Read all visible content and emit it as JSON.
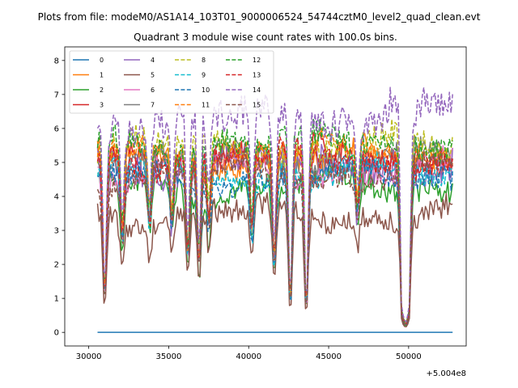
{
  "chart_data": {
    "type": "line",
    "suptitle": "Plots from file: modeM0/AS1A14_103T01_9000006524_54744cztM0_level2_quad_clean.evt",
    "title": "Quadrant 3 module wise count rates with 100.0s bins.",
    "xlabel": "",
    "ylabel": "",
    "x_offset_label": "+5.004e8",
    "xlim": [
      28500,
      53600
    ],
    "ylim": [
      -0.4,
      8.4
    ],
    "x_ticks": [
      30000,
      35000,
      40000,
      45000,
      50000
    ],
    "x_tick_labels": [
      "30000",
      "35000",
      "40000",
      "45000",
      "50000"
    ],
    "y_ticks": [
      0,
      1,
      2,
      3,
      4,
      5,
      6,
      7,
      8
    ],
    "y_tick_labels": [
      "0",
      "1",
      "2",
      "3",
      "4",
      "5",
      "6",
      "7",
      "8"
    ],
    "x_range_data": [
      30550,
      52750
    ],
    "bin_width": 100,
    "legend_position": "upper-left",
    "legend_columns": 4,
    "dip_events": [
      {
        "x": 31000,
        "depth": 0.8
      },
      {
        "x": 32100,
        "depth": 0.45
      },
      {
        "x": 33800,
        "depth": 0.35
      },
      {
        "x": 35200,
        "depth": 0.35
      },
      {
        "x": 36200,
        "depth": 0.55
      },
      {
        "x": 36900,
        "depth": 0.6
      },
      {
        "x": 37500,
        "depth": 0.35
      },
      {
        "x": 40200,
        "depth": 0.4
      },
      {
        "x": 41600,
        "depth": 0.6
      },
      {
        "x": 42600,
        "depth": 0.85
      },
      {
        "x": 43600,
        "depth": 0.88
      },
      {
        "x": 46800,
        "depth": 0.3
      },
      {
        "x": 49600,
        "depth": 0.95
      },
      {
        "x": 49800,
        "depth": 1.0
      },
      {
        "x": 50000,
        "depth": 0.95
      }
    ],
    "series": [
      {
        "name": "0",
        "color": "#1f77b4",
        "dash": "solid",
        "mean": 0.0,
        "amp": 0.0,
        "constant": true
      },
      {
        "name": "1",
        "color": "#ff7f0e",
        "dash": "solid",
        "mean": 5.1,
        "amp": 0.4
      },
      {
        "name": "2",
        "color": "#2ca02c",
        "dash": "solid",
        "mean": 4.3,
        "amp": 0.35
      },
      {
        "name": "3",
        "color": "#d62728",
        "dash": "solid",
        "mean": 5.2,
        "amp": 0.35
      },
      {
        "name": "4",
        "color": "#9467bd",
        "dash": "solid",
        "mean": 5.0,
        "amp": 0.5
      },
      {
        "name": "5",
        "color": "#8c564b",
        "dash": "solid",
        "mean": 3.5,
        "amp": 0.35
      },
      {
        "name": "6",
        "color": "#e377c2",
        "dash": "solid",
        "mean": 4.8,
        "amp": 0.35
      },
      {
        "name": "7",
        "color": "#7f7f7f",
        "dash": "solid",
        "mean": 5.1,
        "amp": 0.35
      },
      {
        "name": "8",
        "color": "#bcbd22",
        "dash": "dashed",
        "mean": 5.5,
        "amp": 0.4
      },
      {
        "name": "9",
        "color": "#17becf",
        "dash": "dashed",
        "mean": 4.7,
        "amp": 0.35
      },
      {
        "name": "10",
        "color": "#1f77b4",
        "dash": "dashed",
        "mean": 4.6,
        "amp": 0.35
      },
      {
        "name": "11",
        "color": "#ff7f0e",
        "dash": "dashed",
        "mean": 5.3,
        "amp": 0.35
      },
      {
        "name": "12",
        "color": "#2ca02c",
        "dash": "dashed",
        "mean": 5.6,
        "amp": 0.4
      },
      {
        "name": "13",
        "color": "#d62728",
        "dash": "dashed",
        "mean": 5.1,
        "amp": 0.35
      },
      {
        "name": "14",
        "color": "#9467bd",
        "dash": "dashed",
        "mean": 6.3,
        "amp": 0.5
      },
      {
        "name": "15",
        "color": "#8c564b",
        "dash": "dashed",
        "mean": 4.7,
        "amp": 0.35
      }
    ]
  }
}
